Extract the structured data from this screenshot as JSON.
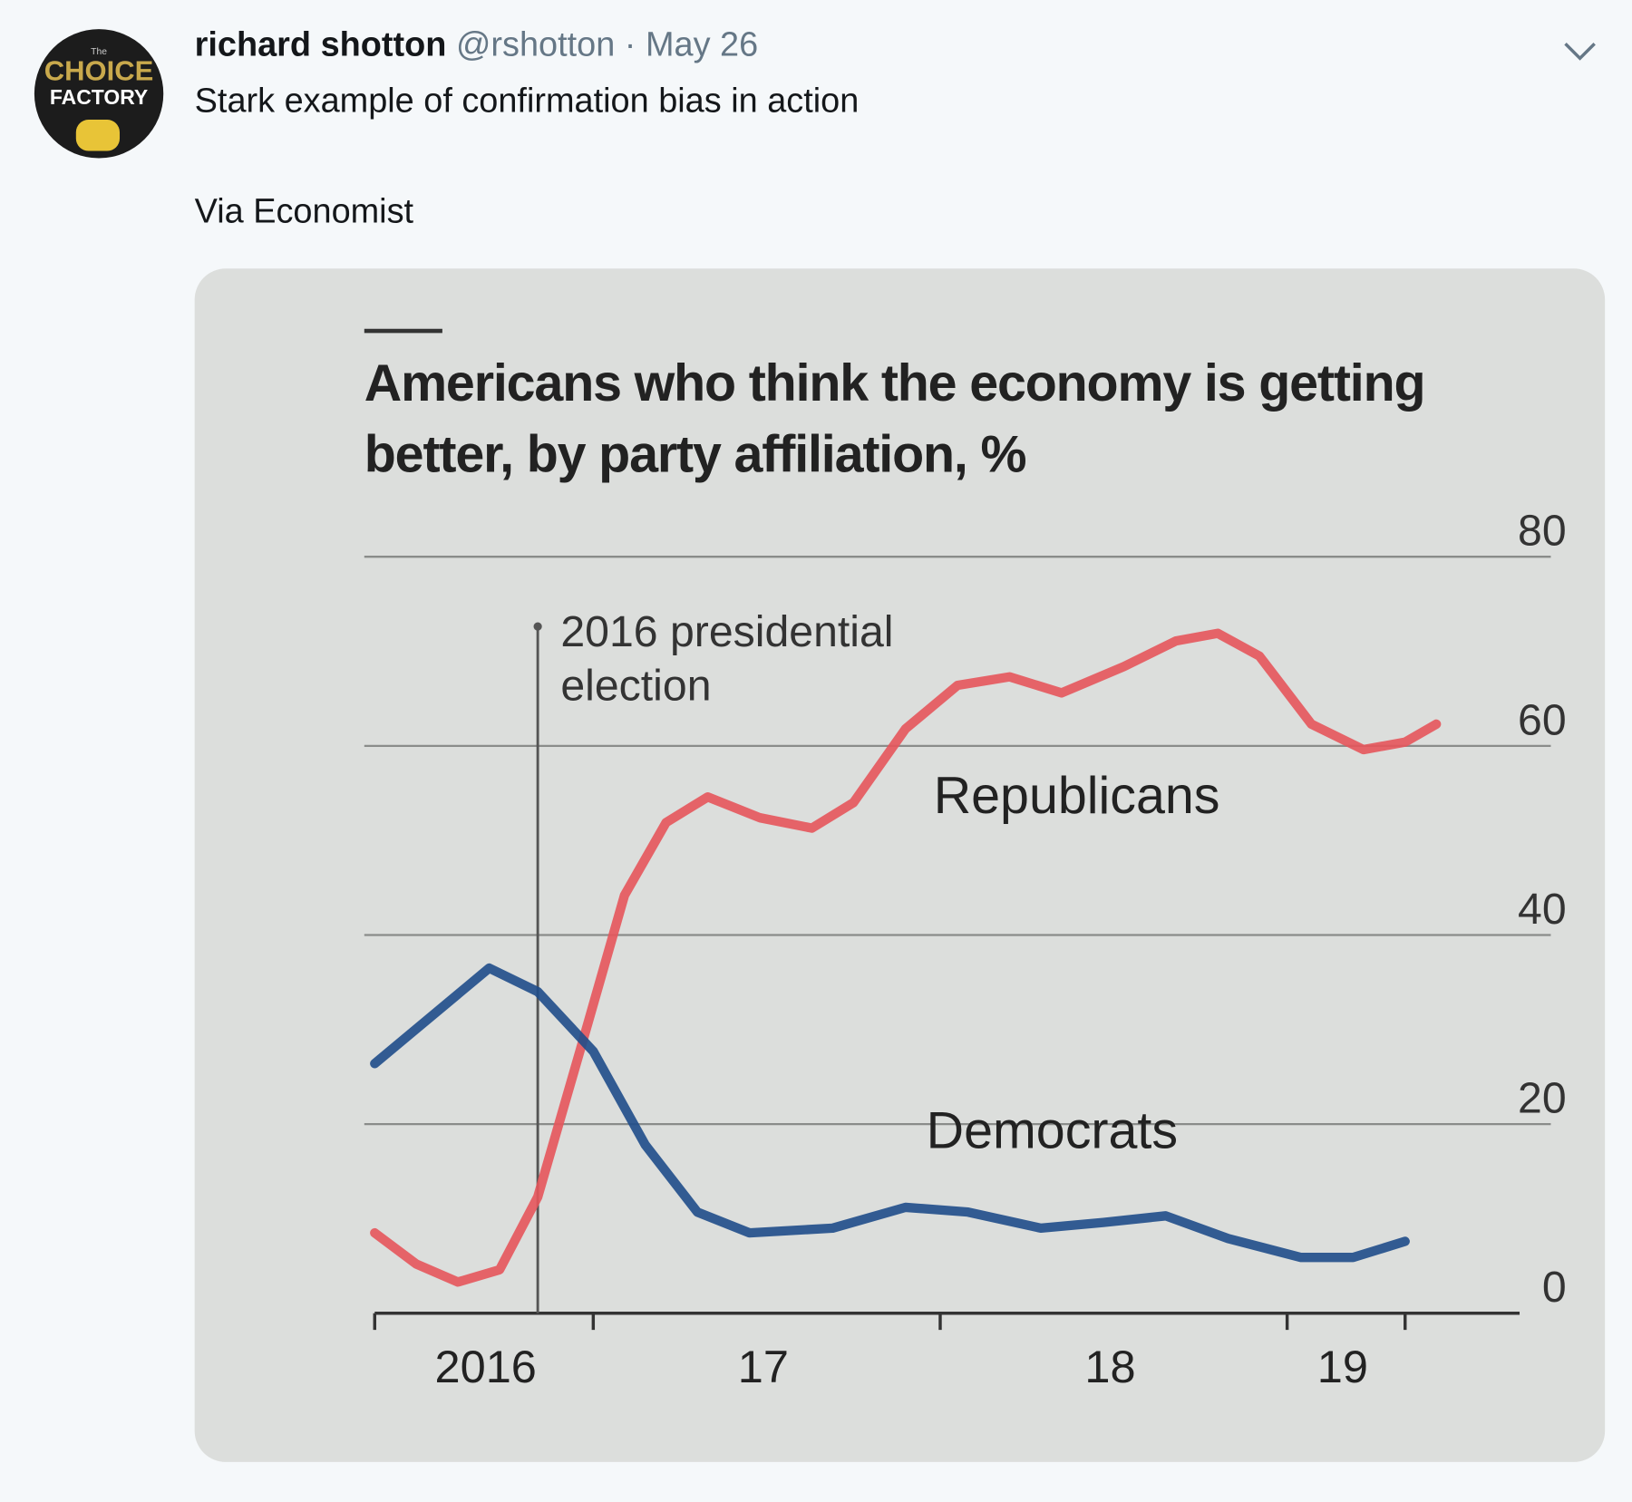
{
  "tweet": {
    "avatar": {
      "small": "The",
      "line1": "CHOICE",
      "line2": "FACTORY"
    },
    "name": "richard shotton",
    "handle": "@rshotton",
    "separator": "·",
    "date": "May 26",
    "text": "Stark example of confirmation bias in action",
    "text2": "Via Economist"
  },
  "chart_data": {
    "type": "line",
    "title": [
      "Americans who think the economy is getting",
      "better, by party affiliation, %"
    ],
    "annotation": {
      "x": 2016.84,
      "lines": [
        "2016 presidential",
        "election"
      ]
    },
    "xlim": [
      2016.37,
      2019.67
    ],
    "xticks": [
      2016.37,
      2017,
      2018,
      2019,
      2019.34
    ],
    "xlabels": [
      {
        "value": 2016.69,
        "label": "2016"
      },
      {
        "value": 2017.49,
        "label": "17"
      },
      {
        "value": 2018.49,
        "label": "18"
      },
      {
        "value": 2019.16,
        "label": "19"
      }
    ],
    "ylim": [
      0,
      80
    ],
    "yticks": [
      0,
      20,
      40,
      60,
      80
    ],
    "grid": true,
    "series": [
      {
        "name": "Republicans",
        "color": "#e5555b",
        "x": [
          2016.37,
          2016.49,
          2016.61,
          2016.73,
          2016.84,
          2016.97,
          2017.09,
          2017.21,
          2017.33,
          2017.48,
          2017.63,
          2017.75,
          2017.9,
          2018.05,
          2018.2,
          2018.35,
          2018.53,
          2018.68,
          2018.8,
          2018.92,
          2019.07,
          2019.22,
          2019.34,
          2019.43
        ],
        "values": [
          8.5,
          5.2,
          3.3,
          4.6,
          12.3,
          28.8,
          44.2,
          51.9,
          54.6,
          52.4,
          51.3,
          54,
          61.8,
          66.4,
          67.3,
          65.6,
          68.4,
          71.1,
          71.9,
          69.5,
          62.3,
          59.6,
          60.4,
          62.3
        ]
      },
      {
        "name": "Democrats",
        "color": "#1f4c8a",
        "x": [
          2016.37,
          2016.7,
          2016.84,
          2017.0,
          2017.15,
          2017.3,
          2017.45,
          2017.69,
          2017.9,
          2018.08,
          2018.29,
          2018.47,
          2018.65,
          2018.83,
          2019.04,
          2019.19,
          2019.34
        ],
        "values": [
          26.4,
          36.5,
          34,
          27.7,
          17.8,
          10.7,
          8.5,
          9,
          11.2,
          10.7,
          9,
          9.6,
          10.3,
          7.9,
          5.9,
          5.9,
          7.6
        ]
      }
    ]
  }
}
